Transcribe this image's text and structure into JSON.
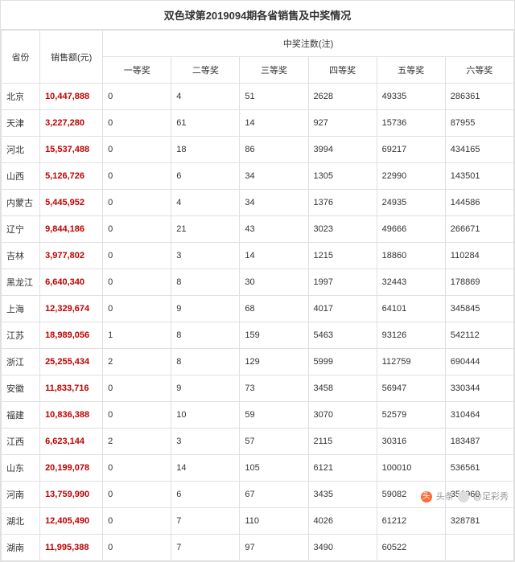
{
  "title": "双色球第2019094期各省销售及中奖情况",
  "headers": {
    "province": "省份",
    "sales": "销售额(元)",
    "prize_group": "中奖注数(注)",
    "prizes": [
      "一等奖",
      "二等奖",
      "三等奖",
      "四等奖",
      "五等奖",
      "六等奖"
    ]
  },
  "rows": [
    {
      "province": "北京",
      "sales": "10,447,888",
      "p": [
        "0",
        "4",
        "51",
        "2628",
        "49335",
        "286361"
      ]
    },
    {
      "province": "天津",
      "sales": "3,227,280",
      "p": [
        "0",
        "61",
        "14",
        "927",
        "15736",
        "87955"
      ]
    },
    {
      "province": "河北",
      "sales": "15,537,488",
      "p": [
        "0",
        "18",
        "86",
        "3994",
        "69217",
        "434165"
      ]
    },
    {
      "province": "山西",
      "sales": "5,126,726",
      "p": [
        "0",
        "6",
        "34",
        "1305",
        "22990",
        "143501"
      ]
    },
    {
      "province": "内蒙古",
      "sales": "5,445,952",
      "p": [
        "0",
        "4",
        "34",
        "1376",
        "24935",
        "144586"
      ]
    },
    {
      "province": "辽宁",
      "sales": "9,844,186",
      "p": [
        "0",
        "21",
        "43",
        "3023",
        "49666",
        "266671"
      ]
    },
    {
      "province": "吉林",
      "sales": "3,977,802",
      "p": [
        "0",
        "3",
        "14",
        "1215",
        "18860",
        "110284"
      ]
    },
    {
      "province": "黑龙江",
      "sales": "6,640,340",
      "p": [
        "0",
        "8",
        "30",
        "1997",
        "32443",
        "178869"
      ]
    },
    {
      "province": "上海",
      "sales": "12,329,674",
      "p": [
        "0",
        "9",
        "68",
        "4017",
        "64101",
        "345845"
      ]
    },
    {
      "province": "江苏",
      "sales": "18,989,056",
      "p": [
        "1",
        "8",
        "159",
        "5463",
        "93126",
        "542112"
      ]
    },
    {
      "province": "浙江",
      "sales": "25,255,434",
      "p": [
        "2",
        "8",
        "129",
        "5999",
        "112759",
        "690444"
      ]
    },
    {
      "province": "安徽",
      "sales": "11,833,716",
      "p": [
        "0",
        "9",
        "73",
        "3458",
        "56947",
        "330344"
      ]
    },
    {
      "province": "福建",
      "sales": "10,836,388",
      "p": [
        "0",
        "10",
        "59",
        "3070",
        "52579",
        "310464"
      ]
    },
    {
      "province": "江西",
      "sales": "6,623,144",
      "p": [
        "2",
        "3",
        "57",
        "2115",
        "30316",
        "183487"
      ]
    },
    {
      "province": "山东",
      "sales": "20,199,078",
      "p": [
        "0",
        "14",
        "105",
        "6121",
        "100010",
        "536561"
      ]
    },
    {
      "province": "河南",
      "sales": "13,759,990",
      "p": [
        "0",
        "6",
        "67",
        "3435",
        "59082",
        "356960"
      ]
    },
    {
      "province": "湖北",
      "sales": "12,405,490",
      "p": [
        "0",
        "7",
        "110",
        "4026",
        "61212",
        "328781"
      ]
    },
    {
      "province": "湖南",
      "sales": "11,995,388",
      "p": [
        "0",
        "7",
        "97",
        "3490",
        "60522",
        ""
      ]
    }
  ],
  "watermark": {
    "label1": "头条",
    "label2": "@足彩秀"
  },
  "colors": {
    "sales_text": "#c00000",
    "border": "#e0e0e0",
    "text": "#333333"
  }
}
